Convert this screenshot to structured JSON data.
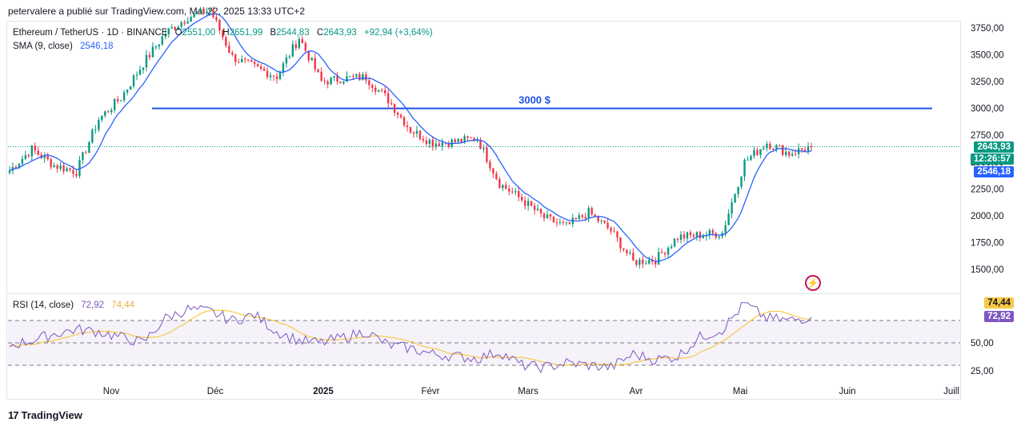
{
  "publisher_line": "petervalere a publié sur TradingView.com, Mai 22, 2025 13:33 UTC+2",
  "legend": {
    "symbol": "Ethereum / TetherUS · 1D · BINANCE",
    "o_label": "O",
    "o_value": "2551,00",
    "h_label": "H",
    "h_value": "2651,99",
    "l_label": "B",
    "l_value": "2544,83",
    "c_label": "C",
    "c_value": "2643,93",
    "change": "+92,94 (+3,64%)",
    "sma_label": "SMA (9, close)",
    "sma_value": "2546,18",
    "rsi_label": "RSI (14, close)",
    "rsi_value": "72,92",
    "rsi_ma_value": "74,44"
  },
  "badges": {
    "price": "2643,93",
    "countdown": "12:26:57",
    "sma": "2546,18",
    "rsi_ma": "74,44",
    "rsi": "72,92"
  },
  "annotation": "3000 $",
  "footer": "TradingView",
  "colors": {
    "up": "#089981",
    "down": "#f23645",
    "sma": "#2962ff",
    "rsi": "#7e57c2",
    "rsi_ma": "#f7c948",
    "level": "#1e53e5"
  },
  "chart_data": [
    {
      "type": "candlestick",
      "title": "Ethereum / TetherUS · 1D · BINANCE",
      "x_ticks": [
        "Nov",
        "Déc",
        "2025",
        "Févr",
        "Mars",
        "Avr",
        "Mai",
        "Juin",
        "Juill"
      ],
      "y_ticks": [
        "1500,00",
        "1750,00",
        "2000,00",
        "2250,00",
        "2500,00",
        "2750,00",
        "3000,00",
        "3250,00",
        "3500,00",
        "3750,00"
      ],
      "ylim": [
        1400,
        3800
      ],
      "horizontal_level": {
        "value": 3000,
        "label": "3000 $"
      },
      "last_price": 2643.93,
      "series": [
        {
          "name": "SMA (9, close)",
          "last": 2546.18
        }
      ],
      "approx_closes_weekly": [
        2420,
        2620,
        2470,
        2410,
        2900,
        3100,
        3420,
        3700,
        3850,
        3920,
        3480,
        3380,
        3300,
        3660,
        3250,
        3280,
        3290,
        3080,
        2800,
        2680,
        2690,
        2720,
        2300,
        2150,
        1980,
        1900,
        2030,
        1860,
        1570,
        1590,
        1800,
        1820,
        1840,
        2500,
        2680,
        2580,
        2644
      ]
    },
    {
      "type": "line",
      "title": "RSI (14, close)",
      "y_ticks": [
        "25,00",
        "50,00"
      ],
      "bands": [
        30,
        50,
        70
      ],
      "ylim": [
        20,
        85
      ],
      "series": [
        {
          "name": "RSI",
          "last": 72.92
        },
        {
          "name": "RSI MA",
          "last": 74.44
        }
      ],
      "approx_rsi_weekly": [
        48,
        52,
        58,
        62,
        60,
        55,
        50,
        72,
        80,
        78,
        70,
        75,
        60,
        52,
        50,
        55,
        60,
        48,
        45,
        40,
        38,
        36,
        42,
        30,
        28,
        32,
        30,
        28,
        40,
        35,
        38,
        55,
        62,
        85,
        72,
        70,
        73
      ]
    }
  ]
}
